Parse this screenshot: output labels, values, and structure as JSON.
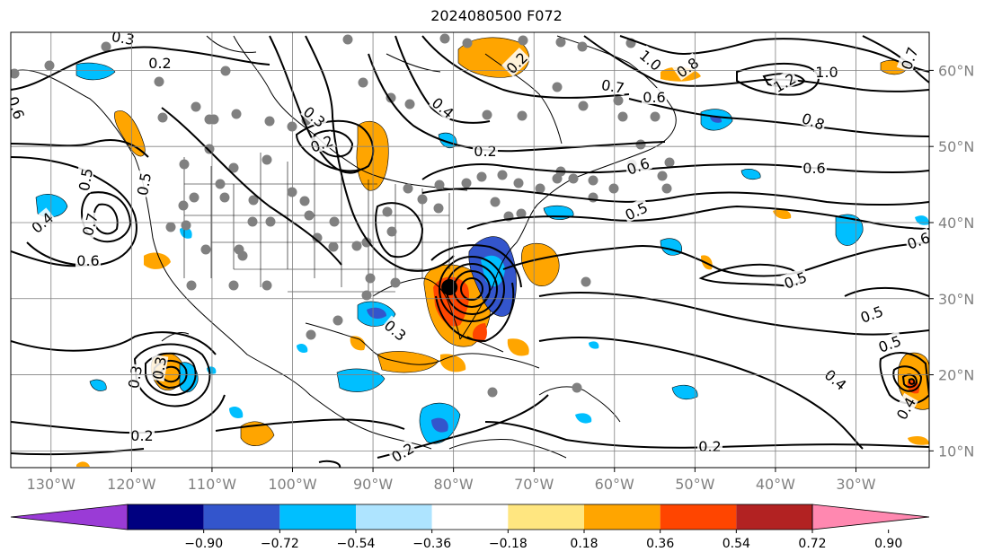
{
  "title": "2024080500 F072",
  "lon_ticks": [
    "130°W",
    "120°W",
    "110°W",
    "100°W",
    "90°W",
    "80°W",
    "70°W",
    "60°W",
    "50°W",
    "40°W",
    "30°W"
  ],
  "lat_ticks": [
    "60°N",
    "50°N",
    "40°N",
    "30°N",
    "20°N",
    "10°N"
  ],
  "colorbar": {
    "colors": [
      "#9a3bd6",
      "#000080",
      "#3355cc",
      "#00bfff",
      "#aee4ff",
      "#ffffff",
      "#ffe680",
      "#ffa500",
      "#ff4500",
      "#b22222",
      "#ff88b0"
    ],
    "tick_labels": [
      "−0.90",
      "−0.72",
      "−0.54",
      "−0.36",
      "−0.18",
      "0.18",
      "0.36",
      "0.54",
      "0.72",
      "0.90"
    ]
  },
  "contour_labels": [
    {
      "text": "0.3"
    },
    {
      "text": "0.2"
    },
    {
      "text": "0.6"
    },
    {
      "text": "0.5"
    },
    {
      "text": "0.4"
    },
    {
      "text": "0.7"
    },
    {
      "text": "0.6"
    },
    {
      "text": "0.5"
    },
    {
      "text": "0.2"
    },
    {
      "text": "0.3"
    },
    {
      "text": "0.4"
    },
    {
      "text": "0.2"
    },
    {
      "text": "0.2"
    },
    {
      "text": "1.0"
    },
    {
      "text": "1.2"
    },
    {
      "text": "0.8"
    },
    {
      "text": "0.7"
    },
    {
      "text": "0.6"
    },
    {
      "text": "0.6"
    },
    {
      "text": "0.5"
    },
    {
      "text": "0.6"
    },
    {
      "text": "0.5"
    },
    {
      "text": "0.5"
    },
    {
      "text": "0.5"
    },
    {
      "text": "0.4"
    },
    {
      "text": "0.3"
    },
    {
      "text": "0.2"
    },
    {
      "text": "0.2"
    },
    {
      "text": "0.3"
    },
    {
      "text": "0.3"
    },
    {
      "text": "0.2"
    },
    {
      "text": "0.4"
    },
    {
      "text": "0.6"
    },
    {
      "text": "1.0"
    },
    {
      "text": "0.7"
    },
    {
      "text": "0.8"
    }
  ],
  "hurricane_center": {
    "lon": -80.5,
    "lat": 31.5
  },
  "station_count": 90
}
